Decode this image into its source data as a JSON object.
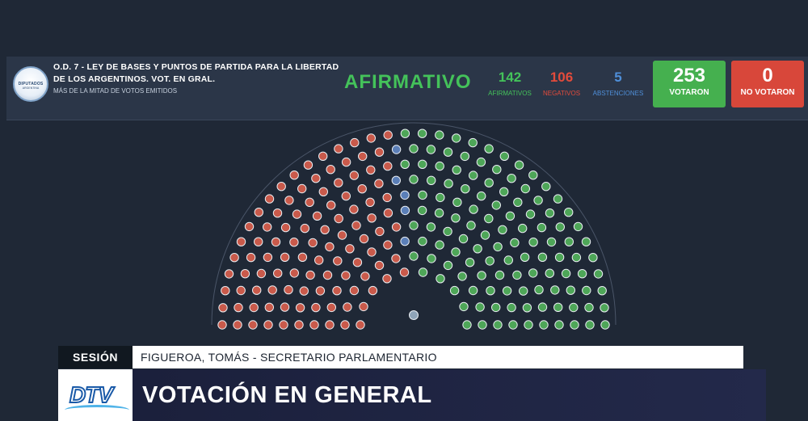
{
  "logo": {
    "text": "DIPUTADOS",
    "sub": "ARGENTINA"
  },
  "header": {
    "title": "O.D. 7 - LEY DE BASES Y PUNTOS DE PARTIDA PARA LA LIBERTAD DE LOS ARGENTINOS. VOT. EN GRAL.",
    "subtitle": "MÁS DE LA MITAD DE VOTOS EMITIDOS",
    "result": "AFIRMATIVO"
  },
  "counts": {
    "afirmativos": {
      "value": "142",
      "label": "AFIRMATIVOS",
      "color": "#44c25a"
    },
    "negativos": {
      "value": "106",
      "label": "NEGATIVOS",
      "color": "#e34b3b"
    },
    "abstenciones": {
      "value": "5",
      "label": "ABSTENCIONES",
      "color": "#4f8fd9"
    }
  },
  "totals": {
    "votaron": {
      "value": "253",
      "label": "VOTARON",
      "color": "#45b04f"
    },
    "no_votaron": {
      "value": "0",
      "label": "NO VOTARON",
      "color": "#d8473a"
    }
  },
  "hemicycle": {
    "total_seats": 257,
    "negative_color": "#c95a4b",
    "affirmative_color": "#4ea658",
    "abstention_color": "#5b7fb8",
    "absent_color": "#6b7380",
    "president_color": "#8fa4b8"
  },
  "session": {
    "label": "SESIÓN",
    "speaker": "FIGUEROA, TOMÁS - SECRETARIO PARLAMENTARIO"
  },
  "footer": {
    "brand": "DTV",
    "title": "VOTACIÓN EN GENERAL"
  }
}
